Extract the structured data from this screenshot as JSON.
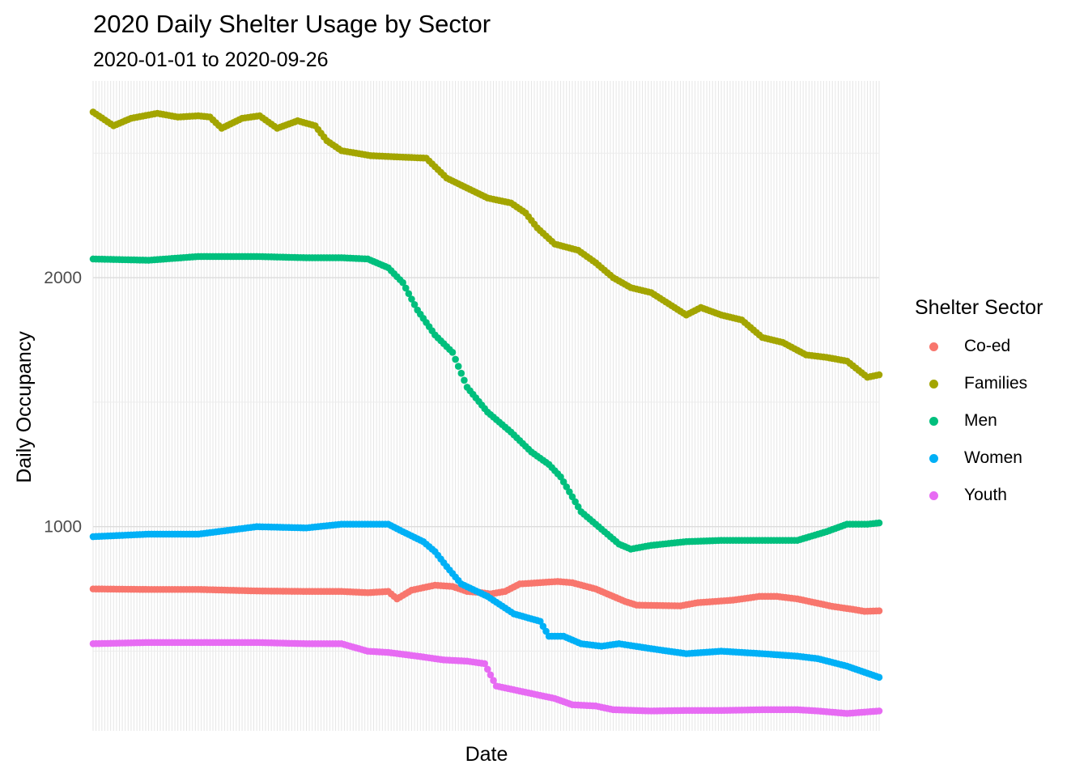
{
  "title": "2020 Daily Shelter Usage by Sector",
  "subtitle": "2020-01-01 to 2020-09-26",
  "legend": {
    "title": "Shelter Sector",
    "position": "right",
    "items": [
      {
        "label": "Co-ed",
        "color": "#F8766D"
      },
      {
        "label": "Families",
        "color": "#A3A500"
      },
      {
        "label": "Men",
        "color": "#00BF7D"
      },
      {
        "label": "Women",
        "color": "#00B0F6"
      },
      {
        "label": "Youth",
        "color": "#E76BF3"
      }
    ]
  },
  "chart_data": {
    "type": "scatter",
    "title": "2020 Daily Shelter Usage by Sector",
    "subtitle": "2020-01-01 to 2020-09-26",
    "xlabel": "Date",
    "ylabel": "Daily Occupancy",
    "x_start": "2020-01-01",
    "x_end": "2020-09-26",
    "x_ticks_labeled": false,
    "ylim": [
      180,
      2790
    ],
    "yticks": [
      1000,
      2000
    ],
    "grid": true,
    "legend_position": "right",
    "series": [
      {
        "name": "Co-ed",
        "color": "#F8766D",
        "points": [
          [
            "2020-01-01",
            750
          ],
          [
            "2020-01-20",
            748
          ],
          [
            "2020-02-06",
            748
          ],
          [
            "2020-02-26",
            742
          ],
          [
            "2020-03-14",
            740
          ],
          [
            "2020-03-26",
            740
          ],
          [
            "2020-04-04",
            735
          ],
          [
            "2020-04-11",
            740
          ],
          [
            "2020-04-14",
            710
          ],
          [
            "2020-04-19",
            745
          ],
          [
            "2020-04-27",
            765
          ],
          [
            "2020-05-03",
            760
          ],
          [
            "2020-05-08",
            740
          ],
          [
            "2020-05-13",
            735
          ],
          [
            "2020-05-16",
            730
          ],
          [
            "2020-05-21",
            740
          ],
          [
            "2020-05-26",
            770
          ],
          [
            "2020-06-08",
            780
          ],
          [
            "2020-06-13",
            775
          ],
          [
            "2020-06-21",
            750
          ],
          [
            "2020-07-01",
            700
          ],
          [
            "2020-07-05",
            685
          ],
          [
            "2020-07-20",
            682
          ],
          [
            "2020-07-26",
            695
          ],
          [
            "2020-08-07",
            705
          ],
          [
            "2020-08-16",
            720
          ],
          [
            "2020-08-22",
            720
          ],
          [
            "2020-08-29",
            710
          ],
          [
            "2020-09-04",
            695
          ],
          [
            "2020-09-10",
            680
          ],
          [
            "2020-09-17",
            668
          ],
          [
            "2020-09-21",
            660
          ],
          [
            "2020-09-26",
            662
          ]
        ]
      },
      {
        "name": "Families",
        "color": "#A3A500",
        "points": [
          [
            "2020-01-01",
            2665
          ],
          [
            "2020-01-08",
            2610
          ],
          [
            "2020-01-14",
            2640
          ],
          [
            "2020-01-23",
            2660
          ],
          [
            "2020-01-30",
            2645
          ],
          [
            "2020-02-06",
            2650
          ],
          [
            "2020-02-10",
            2645
          ],
          [
            "2020-02-14",
            2600
          ],
          [
            "2020-02-21",
            2640
          ],
          [
            "2020-02-27",
            2650
          ],
          [
            "2020-03-04",
            2600
          ],
          [
            "2020-03-11",
            2630
          ],
          [
            "2020-03-17",
            2610
          ],
          [
            "2020-03-21",
            2550
          ],
          [
            "2020-03-26",
            2510
          ],
          [
            "2020-04-05",
            2490
          ],
          [
            "2020-04-14",
            2485
          ],
          [
            "2020-04-24",
            2480
          ],
          [
            "2020-05-01",
            2400
          ],
          [
            "2020-05-08",
            2360
          ],
          [
            "2020-05-15",
            2320
          ],
          [
            "2020-05-23",
            2300
          ],
          [
            "2020-05-28",
            2260
          ],
          [
            "2020-06-01",
            2200
          ],
          [
            "2020-06-07",
            2135
          ],
          [
            "2020-06-15",
            2110
          ],
          [
            "2020-06-21",
            2060
          ],
          [
            "2020-06-27",
            2000
          ],
          [
            "2020-07-03",
            1960
          ],
          [
            "2020-07-10",
            1940
          ],
          [
            "2020-07-18",
            1880
          ],
          [
            "2020-07-22",
            1850
          ],
          [
            "2020-07-27",
            1880
          ],
          [
            "2020-08-03",
            1850
          ],
          [
            "2020-08-10",
            1830
          ],
          [
            "2020-08-17",
            1760
          ],
          [
            "2020-08-24",
            1740
          ],
          [
            "2020-09-01",
            1690
          ],
          [
            "2020-09-08",
            1680
          ],
          [
            "2020-09-15",
            1665
          ],
          [
            "2020-09-22",
            1600
          ],
          [
            "2020-09-26",
            1610
          ]
        ]
      },
      {
        "name": "Men",
        "color": "#00BF7D",
        "points": [
          [
            "2020-01-01",
            2075
          ],
          [
            "2020-01-20",
            2070
          ],
          [
            "2020-02-06",
            2085
          ],
          [
            "2020-02-26",
            2085
          ],
          [
            "2020-03-14",
            2080
          ],
          [
            "2020-03-26",
            2080
          ],
          [
            "2020-04-04",
            2075
          ],
          [
            "2020-04-11",
            2040
          ],
          [
            "2020-04-16",
            1980
          ],
          [
            "2020-04-21",
            1870
          ],
          [
            "2020-04-27",
            1770
          ],
          [
            "2020-05-03",
            1700
          ],
          [
            "2020-05-08",
            1560
          ],
          [
            "2020-05-15",
            1460
          ],
          [
            "2020-05-23",
            1380
          ],
          [
            "2020-05-30",
            1300
          ],
          [
            "2020-06-05",
            1250
          ],
          [
            "2020-06-09",
            1200
          ],
          [
            "2020-06-12",
            1140
          ],
          [
            "2020-06-16",
            1060
          ],
          [
            "2020-06-23",
            990
          ],
          [
            "2020-06-29",
            930
          ],
          [
            "2020-07-03",
            910
          ],
          [
            "2020-07-10",
            925
          ],
          [
            "2020-07-22",
            940
          ],
          [
            "2020-08-03",
            945
          ],
          [
            "2020-08-17",
            945
          ],
          [
            "2020-08-29",
            945
          ],
          [
            "2020-09-08",
            980
          ],
          [
            "2020-09-15",
            1010
          ],
          [
            "2020-09-22",
            1010
          ],
          [
            "2020-09-26",
            1015
          ]
        ]
      },
      {
        "name": "Women",
        "color": "#00B0F6",
        "points": [
          [
            "2020-01-01",
            960
          ],
          [
            "2020-01-20",
            970
          ],
          [
            "2020-02-06",
            970
          ],
          [
            "2020-02-26",
            1000
          ],
          [
            "2020-03-14",
            995
          ],
          [
            "2020-03-26",
            1010
          ],
          [
            "2020-04-04",
            1010
          ],
          [
            "2020-04-11",
            1010
          ],
          [
            "2020-04-16",
            980
          ],
          [
            "2020-04-23",
            940
          ],
          [
            "2020-04-27",
            900
          ],
          [
            "2020-05-01",
            840
          ],
          [
            "2020-05-06",
            770
          ],
          [
            "2020-05-15",
            720
          ],
          [
            "2020-05-24",
            650
          ],
          [
            "2020-06-02",
            620
          ],
          [
            "2020-06-05",
            560
          ],
          [
            "2020-06-10",
            560
          ],
          [
            "2020-06-16",
            530
          ],
          [
            "2020-06-23",
            520
          ],
          [
            "2020-06-29",
            530
          ],
          [
            "2020-07-10",
            510
          ],
          [
            "2020-07-22",
            490
          ],
          [
            "2020-08-03",
            500
          ],
          [
            "2020-08-17",
            490
          ],
          [
            "2020-08-29",
            480
          ],
          [
            "2020-09-05",
            470
          ],
          [
            "2020-09-15",
            440
          ],
          [
            "2020-09-26",
            395
          ]
        ]
      },
      {
        "name": "Youth",
        "color": "#E76BF3",
        "points": [
          [
            "2020-01-01",
            530
          ],
          [
            "2020-01-20",
            535
          ],
          [
            "2020-02-06",
            535
          ],
          [
            "2020-02-26",
            535
          ],
          [
            "2020-03-14",
            530
          ],
          [
            "2020-03-26",
            530
          ],
          [
            "2020-04-04",
            500
          ],
          [
            "2020-04-11",
            495
          ],
          [
            "2020-04-21",
            480
          ],
          [
            "2020-04-30",
            465
          ],
          [
            "2020-05-08",
            460
          ],
          [
            "2020-05-14",
            450
          ],
          [
            "2020-05-18",
            360
          ],
          [
            "2020-05-24",
            345
          ],
          [
            "2020-06-01",
            325
          ],
          [
            "2020-06-07",
            310
          ],
          [
            "2020-06-13",
            285
          ],
          [
            "2020-06-21",
            280
          ],
          [
            "2020-06-27",
            265
          ],
          [
            "2020-07-10",
            260
          ],
          [
            "2020-07-22",
            262
          ],
          [
            "2020-08-03",
            262
          ],
          [
            "2020-08-17",
            265
          ],
          [
            "2020-08-29",
            265
          ],
          [
            "2020-09-05",
            260
          ],
          [
            "2020-09-15",
            250
          ],
          [
            "2020-09-26",
            260
          ]
        ]
      }
    ]
  }
}
